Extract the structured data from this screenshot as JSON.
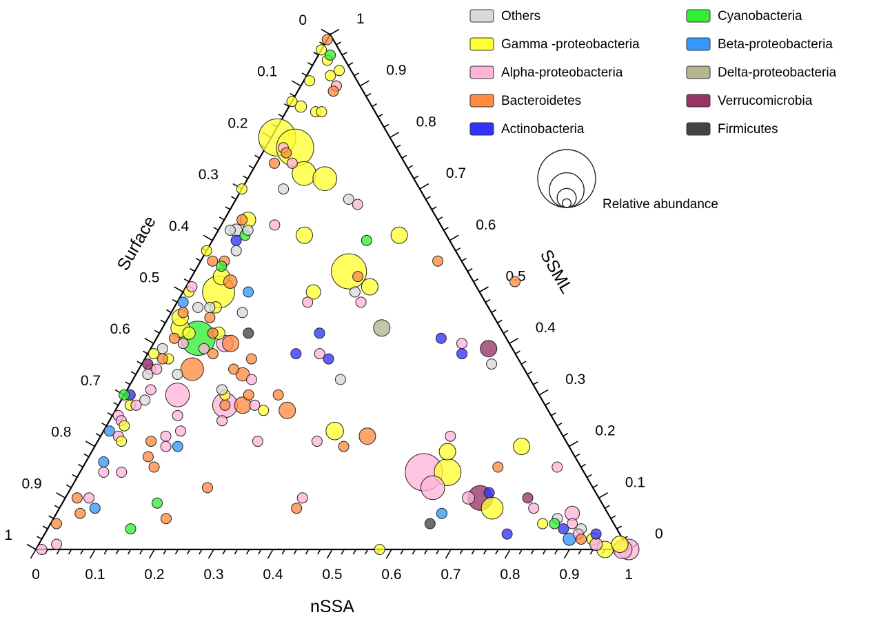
{
  "chart_data": {
    "type": "scatter",
    "subtype": "ternary-bubble",
    "axes": {
      "bottom": {
        "label": "nSSA",
        "ticks": [
          "0",
          "0.1",
          "0.2",
          "0.3",
          "0.4",
          "0.5",
          "0.6",
          "0.7",
          "0.8",
          "0.9",
          "1"
        ]
      },
      "left": {
        "label": "Surface",
        "ticks": [
          "0",
          "0.1",
          "0.2",
          "0.3",
          "0.4",
          "0.5",
          "0.6",
          "0.7",
          "0.8",
          "0.9",
          "1"
        ]
      },
      "right": {
        "label": "SSML",
        "ticks": [
          "0",
          "0.1",
          "0.2",
          "0.3",
          "0.4",
          "0.5",
          "0.6",
          "0.7",
          "0.8",
          "0.9",
          "1"
        ]
      }
    },
    "grid": false,
    "legend_position": "top-right",
    "legend": [
      {
        "name": "Others",
        "color": "#d9d9d9"
      },
      {
        "name": "Gamma -proteobacteria",
        "color": "#ffff33"
      },
      {
        "name": "Alpha-proteobacteria",
        "color": "#ffb3d9"
      },
      {
        "name": "Bacteroidetes",
        "color": "#ff8c42"
      },
      {
        "name": "Actinobacteria",
        "color": "#3333ff"
      },
      {
        "name": "Cyanobacteria",
        "color": "#33ee33"
      },
      {
        "name": "Beta-proteobacteria",
        "color": "#3399ff"
      },
      {
        "name": "Delta-proteobacteria",
        "color": "#b5b592"
      },
      {
        "name": "Verrucomicrobia",
        "color": "#993366"
      },
      {
        "name": "Firmicutes",
        "color": "#444444"
      }
    ],
    "size_legend": {
      "label": "Relative abundance",
      "relative_sizes": [
        1.0,
        0.6,
        0.33,
        0.15
      ]
    },
    "points": [
      {
        "g": 1,
        "nssa": 0.05,
        "ssml": 0.93,
        "s": 1
      },
      {
        "g": 1,
        "nssa": 0.06,
        "ssml": 0.9,
        "s": 1
      },
      {
        "g": 1,
        "nssa": 0.05,
        "ssml": 0.85,
        "s": 1
      },
      {
        "g": 2,
        "nssa": 0.03,
        "ssml": 0.78,
        "s": 1
      },
      {
        "g": 2,
        "nssa": 0.06,
        "ssml": 0.75,
        "s": 1
      },
      {
        "g": 0,
        "nssa": 0.07,
        "ssml": 0.7,
        "s": 1
      },
      {
        "g": 2,
        "nssa": 0.09,
        "ssml": 0.63,
        "s": 1
      },
      {
        "g": 1,
        "nssa": 0.04,
        "ssml": 0.92,
        "s": 1
      },
      {
        "g": 1,
        "nssa": 0.02,
        "ssml": 0.86,
        "s": 1.1
      },
      {
        "g": 1,
        "nssa": 0.01,
        "ssml": 0.8,
        "s": 3.6
      },
      {
        "g": 1,
        "nssa": 0.09,
        "ssml": 0.73,
        "s": 2.3
      },
      {
        "g": 3,
        "nssa": 0.04,
        "ssml": 0.77,
        "s": 1
      },
      {
        "g": 3,
        "nssa": 0.03,
        "ssml": 0.75,
        "s": 1
      },
      {
        "g": 1,
        "nssa": 0.04,
        "ssml": 0.64,
        "s": 1.5
      },
      {
        "g": 3,
        "nssa": 0.03,
        "ssml": 0.64,
        "s": 1
      },
      {
        "g": 1,
        "nssa": 0.0,
        "ssml": 0.7,
        "s": 1
      },
      {
        "g": 5,
        "nssa": 0.05,
        "ssml": 0.61,
        "s": 1
      },
      {
        "g": 4,
        "nssa": 0.04,
        "ssml": 0.6,
        "s": 1
      },
      {
        "g": 1,
        "nssa": 0.05,
        "ssml": 0.53,
        "s": 1.6
      },
      {
        "g": 1,
        "nssa": 0.06,
        "ssml": 0.5,
        "s": 3.1
      },
      {
        "g": 3,
        "nssa": 0.07,
        "ssml": 0.52,
        "s": 1.3
      },
      {
        "g": 0,
        "nssa": 0.06,
        "ssml": 0.47,
        "s": 1
      },
      {
        "g": 3,
        "nssa": 0.02,
        "ssml": 0.56,
        "s": 1
      },
      {
        "g": 3,
        "nssa": 0.04,
        "ssml": 0.56,
        "s": 1
      },
      {
        "g": 0,
        "nssa": 0.02,
        "ssml": 0.62,
        "s": 1
      },
      {
        "g": 0,
        "nssa": 0.03,
        "ssml": 0.62,
        "s": 1.2
      },
      {
        "g": 0,
        "nssa": 0.05,
        "ssml": 0.58,
        "s": 1
      },
      {
        "g": 1,
        "nssa": 0.01,
        "ssml": 0.5,
        "s": 1
      },
      {
        "g": 6,
        "nssa": 0.01,
        "ssml": 0.48,
        "s": 1
      },
      {
        "g": 1,
        "nssa": 0.02,
        "ssml": 0.45,
        "s": 1.6
      },
      {
        "g": 1,
        "nssa": 0.03,
        "ssml": 0.43,
        "s": 1.8
      },
      {
        "g": 1,
        "nssa": 0.05,
        "ssml": 0.42,
        "s": 1.2
      },
      {
        "g": 3,
        "nssa": 0.02,
        "ssml": 0.46,
        "s": 1
      },
      {
        "g": 3,
        "nssa": 0.03,
        "ssml": 0.41,
        "s": 1
      },
      {
        "g": 0,
        "nssa": 0.04,
        "ssml": 0.47,
        "s": 1
      },
      {
        "g": 2,
        "nssa": 0.05,
        "ssml": 0.4,
        "s": 1
      },
      {
        "g": 0,
        "nssa": 0.02,
        "ssml": 0.39,
        "s": 1
      },
      {
        "g": 1,
        "nssa": 0.01,
        "ssml": 0.38,
        "s": 1
      },
      {
        "g": 2,
        "nssa": 0.01,
        "ssml": 0.36,
        "s": 1
      },
      {
        "g": 2,
        "nssa": 0.02,
        "ssml": 0.35,
        "s": 1
      },
      {
        "g": 0,
        "nssa": 0.02,
        "ssml": 0.34,
        "s": 1
      },
      {
        "g": 8,
        "nssa": 0.01,
        "ssml": 0.36,
        "s": 1
      },
      {
        "g": 1,
        "nssa": 0.04,
        "ssml": 0.37,
        "s": 1
      },
      {
        "g": 2,
        "nssa": 0.03,
        "ssml": 0.35,
        "s": 1
      },
      {
        "g": 3,
        "nssa": 0.03,
        "ssml": 0.37,
        "s": 1
      },
      {
        "g": 2,
        "nssa": 0.04,
        "ssml": 0.31,
        "s": 1
      },
      {
        "g": 1,
        "nssa": 0.01,
        "ssml": 0.3,
        "s": 1
      },
      {
        "g": 1,
        "nssa": 0.02,
        "ssml": 0.28,
        "s": 1
      },
      {
        "g": 4,
        "nssa": 0.01,
        "ssml": 0.3,
        "s": 1
      },
      {
        "g": 2,
        "nssa": 0.03,
        "ssml": 0.28,
        "s": 1
      },
      {
        "g": 0,
        "nssa": 0.04,
        "ssml": 0.29,
        "s": 1
      },
      {
        "g": 2,
        "nssa": 0.01,
        "ssml": 0.26,
        "s": 1
      },
      {
        "g": 2,
        "nssa": 0.02,
        "ssml": 0.25,
        "s": 1
      },
      {
        "g": 6,
        "nssa": 0.01,
        "ssml": 0.23,
        "s": 1
      },
      {
        "g": 5,
        "nssa": 0.0,
        "ssml": 0.3,
        "s": 1
      },
      {
        "g": 1,
        "nssa": 0.03,
        "ssml": 0.24,
        "s": 1
      },
      {
        "g": 2,
        "nssa": 0.03,
        "ssml": 0.22,
        "s": 1
      },
      {
        "g": 1,
        "nssa": 0.04,
        "ssml": 0.21,
        "s": 1
      },
      {
        "g": 2,
        "nssa": 0.04,
        "ssml": 0.15,
        "s": 1
      },
      {
        "g": 6,
        "nssa": 0.03,
        "ssml": 0.17,
        "s": 1
      },
      {
        "g": 2,
        "nssa": 0.07,
        "ssml": 0.15,
        "s": 1
      },
      {
        "g": 3,
        "nssa": 0.02,
        "ssml": 0.1,
        "s": 1
      },
      {
        "g": 2,
        "nssa": 0.04,
        "ssml": 0.1,
        "s": 1
      },
      {
        "g": 3,
        "nssa": 0.04,
        "ssml": 0.07,
        "s": 1
      },
      {
        "g": 6,
        "nssa": 0.06,
        "ssml": 0.08,
        "s": 1
      },
      {
        "g": 3,
        "nssa": 0.01,
        "ssml": 0.05,
        "s": 1
      },
      {
        "g": 5,
        "nssa": 0.14,
        "ssml": 0.04,
        "s": 1
      },
      {
        "g": 3,
        "nssa": 0.19,
        "ssml": 0.06,
        "s": 1
      },
      {
        "g": 2,
        "nssa": 0.01,
        "ssml": 0.0,
        "s": 1
      },
      {
        "g": 5,
        "nssa": 0.04,
        "ssml": 0.55,
        "s": 1
      },
      {
        "g": 3,
        "nssa": 0.07,
        "ssml": 0.45,
        "s": 1
      },
      {
        "g": 6,
        "nssa": 0.11,
        "ssml": 0.5,
        "s": 1
      },
      {
        "g": 1,
        "nssa": 0.07,
        "ssml": 0.47,
        "s": 1.1
      },
      {
        "g": 0,
        "nssa": 0.12,
        "ssml": 0.46,
        "s": 1
      },
      {
        "g": 3,
        "nssa": 0.09,
        "ssml": 0.42,
        "s": 1
      },
      {
        "g": 9,
        "nssa": 0.15,
        "ssml": 0.42,
        "s": 1
      },
      {
        "g": 5,
        "nssa": 0.07,
        "ssml": 0.41,
        "s": 3.3
      },
      {
        "g": 1,
        "nssa": 0.1,
        "ssml": 0.42,
        "s": 1.2
      },
      {
        "g": 2,
        "nssa": 0.12,
        "ssml": 0.4,
        "s": 1.6
      },
      {
        "g": 3,
        "nssa": 0.13,
        "ssml": 0.4,
        "s": 1.6
      },
      {
        "g": 3,
        "nssa": 0.11,
        "ssml": 0.38,
        "s": 1
      },
      {
        "g": 3,
        "nssa": 0.09,
        "ssml": 0.35,
        "s": 2.2
      },
      {
        "g": 3,
        "nssa": 0.16,
        "ssml": 0.35,
        "s": 1
      },
      {
        "g": 0,
        "nssa": 0.07,
        "ssml": 0.34,
        "s": 1
      },
      {
        "g": 2,
        "nssa": 0.09,
        "ssml": 0.3,
        "s": 2.3
      },
      {
        "g": 2,
        "nssa": 0.11,
        "ssml": 0.26,
        "s": 1
      },
      {
        "g": 3,
        "nssa": 0.18,
        "ssml": 0.34,
        "s": 1.3
      },
      {
        "g": 2,
        "nssa": 0.2,
        "ssml": 0.33,
        "s": 1
      },
      {
        "g": 3,
        "nssa": 0.21,
        "ssml": 0.3,
        "s": 1
      },
      {
        "g": 1,
        "nssa": 0.17,
        "ssml": 0.3,
        "s": 1
      },
      {
        "g": 2,
        "nssa": 0.18,
        "ssml": 0.28,
        "s": 2.4
      },
      {
        "g": 3,
        "nssa": 0.21,
        "ssml": 0.28,
        "s": 1.6
      },
      {
        "g": 3,
        "nssa": 0.26,
        "ssml": 0.3,
        "s": 1
      },
      {
        "g": 3,
        "nssa": 0.29,
        "ssml": 0.27,
        "s": 1.6
      },
      {
        "g": 0,
        "nssa": 0.16,
        "ssml": 0.31,
        "s": 1
      },
      {
        "g": 2,
        "nssa": 0.13,
        "ssml": 0.23,
        "s": 1
      },
      {
        "g": 2,
        "nssa": 0.19,
        "ssml": 0.25,
        "s": 1
      },
      {
        "g": 3,
        "nssa": 0.18,
        "ssml": 0.28,
        "s": 1
      },
      {
        "g": 2,
        "nssa": 0.23,
        "ssml": 0.28,
        "s": 1
      },
      {
        "g": 1,
        "nssa": 0.25,
        "ssml": 0.27,
        "s": 1
      },
      {
        "g": 3,
        "nssa": 0.18,
        "ssml": 0.37,
        "s": 1
      },
      {
        "g": 4,
        "nssa": 0.27,
        "ssml": 0.42,
        "s": 1
      },
      {
        "g": 2,
        "nssa": 0.29,
        "ssml": 0.38,
        "s": 1
      },
      {
        "g": 4,
        "nssa": 0.31,
        "ssml": 0.37,
        "s": 1
      },
      {
        "g": 7,
        "nssa": 0.37,
        "ssml": 0.43,
        "s": 1.6
      },
      {
        "g": 0,
        "nssa": 0.35,
        "ssml": 0.33,
        "s": 1
      },
      {
        "g": 3,
        "nssa": 0.4,
        "ssml": 0.56,
        "s": 1
      },
      {
        "g": 1,
        "nssa": 0.22,
        "ssml": 0.5,
        "s": 1.4
      },
      {
        "g": 2,
        "nssa": 0.22,
        "ssml": 0.48,
        "s": 1
      },
      {
        "g": 1,
        "nssa": 0.13,
        "ssml": 0.72,
        "s": 2.3
      },
      {
        "g": 0,
        "nssa": 0.19,
        "ssml": 0.68,
        "s": 1
      },
      {
        "g": 2,
        "nssa": 0.21,
        "ssml": 0.67,
        "s": 1
      },
      {
        "g": 1,
        "nssa": 0.15,
        "ssml": 0.61,
        "s": 1.6
      },
      {
        "g": 0,
        "nssa": 0.05,
        "ssml": 0.62,
        "s": 1
      },
      {
        "g": 1,
        "nssa": 0.26,
        "ssml": 0.54,
        "s": 3.4
      },
      {
        "g": 3,
        "nssa": 0.28,
        "ssml": 0.53,
        "s": 1
      },
      {
        "g": 0,
        "nssa": 0.29,
        "ssml": 0.5,
        "s": 1
      },
      {
        "g": 1,
        "nssa": 0.31,
        "ssml": 0.61,
        "s": 1.6
      },
      {
        "g": 5,
        "nssa": 0.26,
        "ssml": 0.6,
        "s": 1
      },
      {
        "g": 2,
        "nssa": 0.06,
        "ssml": 0.9,
        "s": 1
      },
      {
        "g": 3,
        "nssa": 0.06,
        "ssml": 0.89,
        "s": 1
      },
      {
        "g": 1,
        "nssa": 0.0,
        "ssml": 0.97,
        "s": 1
      },
      {
        "g": 3,
        "nssa": 0.0,
        "ssml": 0.99,
        "s": 1
      },
      {
        "g": 1,
        "nssa": 0.02,
        "ssml": 0.95,
        "s": 1
      },
      {
        "g": 1,
        "nssa": 0.01,
        "ssml": 0.91,
        "s": 1
      },
      {
        "g": 1,
        "nssa": 0.06,
        "ssml": 0.85,
        "s": 1
      },
      {
        "g": 1,
        "nssa": 0.05,
        "ssml": 0.78,
        "s": 3.6
      },
      {
        "g": 4,
        "nssa": 0.25,
        "ssml": 0.38,
        "s": 1
      },
      {
        "g": 5,
        "nssa": 0.02,
        "ssml": 0.96,
        "s": 1
      },
      {
        "g": 1,
        "nssa": 0.0,
        "ssml": 0.87,
        "s": 1
      },
      {
        "g": 2,
        "nssa": 0.09,
        "ssml": 0.39,
        "s": 1
      },
      {
        "g": 2,
        "nssa": 0.01,
        "ssml": 0.51,
        "s": 1
      },
      {
        "g": 1,
        "nssa": 0.0,
        "ssml": 0.58,
        "s": 1
      },
      {
        "g": 1,
        "nssa": 0.39,
        "ssml": 0.23,
        "s": 1.7
      },
      {
        "g": 3,
        "nssa": 0.42,
        "ssml": 0.2,
        "s": 1
      },
      {
        "g": 3,
        "nssa": 0.45,
        "ssml": 0.22,
        "s": 1.6
      },
      {
        "g": 1,
        "nssa": 0.6,
        "ssml": 0.19,
        "s": 1.6
      },
      {
        "g": 2,
        "nssa": 0.59,
        "ssml": 0.22,
        "s": 1
      },
      {
        "g": 2,
        "nssa": 0.58,
        "ssml": 0.15,
        "s": 3.6
      },
      {
        "g": 2,
        "nssa": 0.61,
        "ssml": 0.12,
        "s": 2.3
      },
      {
        "g": 1,
        "nssa": 0.62,
        "ssml": 0.15,
        "s": 2.6
      },
      {
        "g": 6,
        "nssa": 0.65,
        "ssml": 0.07,
        "s": 1
      },
      {
        "g": 8,
        "nssa": 0.7,
        "ssml": 0.1,
        "s": 2.4
      },
      {
        "g": 4,
        "nssa": 0.71,
        "ssml": 0.11,
        "s": 1
      },
      {
        "g": 2,
        "nssa": 0.68,
        "ssml": 0.1,
        "s": 1.2
      },
      {
        "g": 1,
        "nssa": 0.73,
        "ssml": 0.08,
        "s": 2.1
      },
      {
        "g": 3,
        "nssa": 0.7,
        "ssml": 0.16,
        "s": 1
      },
      {
        "g": 1,
        "nssa": 0.72,
        "ssml": 0.2,
        "s": 1.6
      },
      {
        "g": 2,
        "nssa": 0.8,
        "ssml": 0.08,
        "s": 1
      },
      {
        "g": 8,
        "nssa": 0.78,
        "ssml": 0.1,
        "s": 1
      },
      {
        "g": 1,
        "nssa": 0.83,
        "ssml": 0.05,
        "s": 1
      },
      {
        "g": 0,
        "nssa": 0.85,
        "ssml": 0.06,
        "s": 1
      },
      {
        "g": 5,
        "nssa": 0.85,
        "ssml": 0.05,
        "s": 1
      },
      {
        "g": 2,
        "nssa": 0.87,
        "ssml": 0.07,
        "s": 1.4
      },
      {
        "g": 2,
        "nssa": 0.88,
        "ssml": 0.05,
        "s": 1
      },
      {
        "g": 4,
        "nssa": 0.87,
        "ssml": 0.04,
        "s": 1
      },
      {
        "g": 0,
        "nssa": 0.9,
        "ssml": 0.04,
        "s": 1
      },
      {
        "g": 2,
        "nssa": 0.9,
        "ssml": 0.03,
        "s": 1
      },
      {
        "g": 6,
        "nssa": 0.89,
        "ssml": 0.02,
        "s": 1.2
      },
      {
        "g": 3,
        "nssa": 0.91,
        "ssml": 0.02,
        "s": 1
      },
      {
        "g": 1,
        "nssa": 0.93,
        "ssml": 0.02,
        "s": 1.2
      },
      {
        "g": 2,
        "nssa": 0.94,
        "ssml": 0.01,
        "s": 1.2
      },
      {
        "g": 1,
        "nssa": 0.96,
        "ssml": 0.0,
        "s": 1.6
      },
      {
        "g": 2,
        "nssa": 0.99,
        "ssml": 0.0,
        "s": 1.8
      },
      {
        "g": 4,
        "nssa": 0.93,
        "ssml": 0.03,
        "s": 1
      },
      {
        "g": 8,
        "nssa": 0.57,
        "ssml": 0.39,
        "s": 1.6
      },
      {
        "g": 4,
        "nssa": 0.48,
        "ssml": 0.41,
        "s": 1
      },
      {
        "g": 2,
        "nssa": 0.52,
        "ssml": 0.4,
        "s": 1
      },
      {
        "g": 4,
        "nssa": 0.53,
        "ssml": 0.38,
        "s": 1
      },
      {
        "g": 0,
        "nssa": 0.59,
        "ssml": 0.36,
        "s": 1
      },
      {
        "g": 3,
        "nssa": 0.55,
        "ssml": 0.52,
        "s": 1
      },
      {
        "g": 1,
        "nssa": 0.31,
        "ssml": 0.51,
        "s": 1.6
      },
      {
        "g": 2,
        "nssa": 0.31,
        "ssml": 0.48,
        "s": 1
      },
      {
        "g": 2,
        "nssa": 0.4,
        "ssml": 0.1,
        "s": 1
      },
      {
        "g": 3,
        "nssa": 0.4,
        "ssml": 0.08,
        "s": 1
      },
      {
        "g": 9,
        "nssa": 0.64,
        "ssml": 0.05,
        "s": 1
      },
      {
        "g": 4,
        "nssa": 0.78,
        "ssml": 0.03,
        "s": 1
      },
      {
        "g": 1,
        "nssa": 0.58,
        "ssml": 0.0,
        "s": 1
      },
      {
        "g": 5,
        "nssa": 0.16,
        "ssml": 0.09,
        "s": 1
      },
      {
        "g": 3,
        "nssa": 0.23,
        "ssml": 0.12,
        "s": 1
      },
      {
        "g": 2,
        "nssa": 0.27,
        "ssml": 0.21,
        "s": 1
      },
      {
        "g": 2,
        "nssa": 0.37,
        "ssml": 0.21,
        "s": 1
      },
      {
        "g": 3,
        "nssa": 0.09,
        "ssml": 0.21,
        "s": 1
      },
      {
        "g": 2,
        "nssa": 0.12,
        "ssml": 0.2,
        "s": 1
      },
      {
        "g": 2,
        "nssa": 0.11,
        "ssml": 0.22,
        "s": 1
      },
      {
        "g": 6,
        "nssa": 0.14,
        "ssml": 0.2,
        "s": 1
      },
      {
        "g": 2,
        "nssa": 0.03,
        "ssml": 0.01,
        "s": 1
      },
      {
        "g": 3,
        "nssa": 0.1,
        "ssml": 0.18,
        "s": 1
      },
      {
        "g": 3,
        "nssa": 0.12,
        "ssml": 0.16,
        "s": 1
      },
      {
        "g": 2,
        "nssa": 1.0,
        "ssml": 0.0,
        "s": 2.0
      },
      {
        "g": 1,
        "nssa": 0.98,
        "ssml": 0.01,
        "s": 1.6
      },
      {
        "g": 2,
        "nssa": 0.8,
        "ssml": 0.16,
        "s": 1.0
      }
    ]
  }
}
